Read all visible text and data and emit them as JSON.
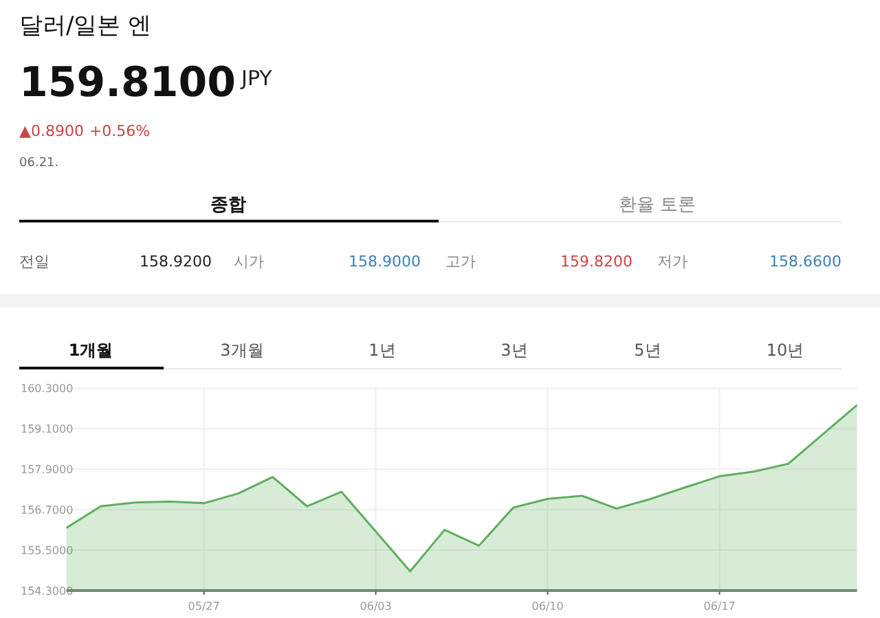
{
  "chart_data": {
    "type": "area",
    "title": "달러/일본 엔",
    "annotations": [
      "159.8100",
      "JPY",
      "▲0.8900",
      "+0.56%",
      "06.21.",
      "종합",
      "환율 토론",
      "전일",
      "158.9200",
      "시가",
      "158.9000",
      "고가",
      "159.8200",
      "저가",
      "158.6600",
      "1개월",
      "3개월",
      "1년",
      "3년",
      "5년",
      "10년"
    ],
    "categories": [
      null,
      null,
      null,
      null,
      "05/27",
      null,
      null,
      null,
      null,
      "06/03",
      null,
      null,
      null,
      null,
      "06/10",
      null,
      null,
      null,
      null,
      "06/17",
      null,
      null,
      null,
      null
    ],
    "series": [
      {
        "color": "#5fae5f",
        "values": [
          156.16,
          156.8,
          156.91,
          156.94,
          156.89,
          157.18,
          157.67,
          156.8,
          157.23,
          156.05,
          154.87,
          156.1,
          155.63,
          156.76,
          157.02,
          157.11,
          156.73,
          157.02,
          157.36,
          157.69,
          157.83,
          158.06,
          158.93,
          159.8
        ]
      }
    ],
    "ylim": [
      154.3,
      160.3
    ],
    "yticks": [
      {
        "value": 154.3,
        "label": "154.3000"
      },
      {
        "value": 155.5,
        "label": "155.5000"
      },
      {
        "value": 156.7,
        "label": "156.7000"
      },
      {
        "value": 157.9,
        "label": "157.9000"
      },
      {
        "value": 159.1,
        "label": "159.1000"
      },
      {
        "value": 160.3,
        "label": "160.3000"
      }
    ],
    "grid": true,
    "marker": "none",
    "line_style": "solid"
  }
}
